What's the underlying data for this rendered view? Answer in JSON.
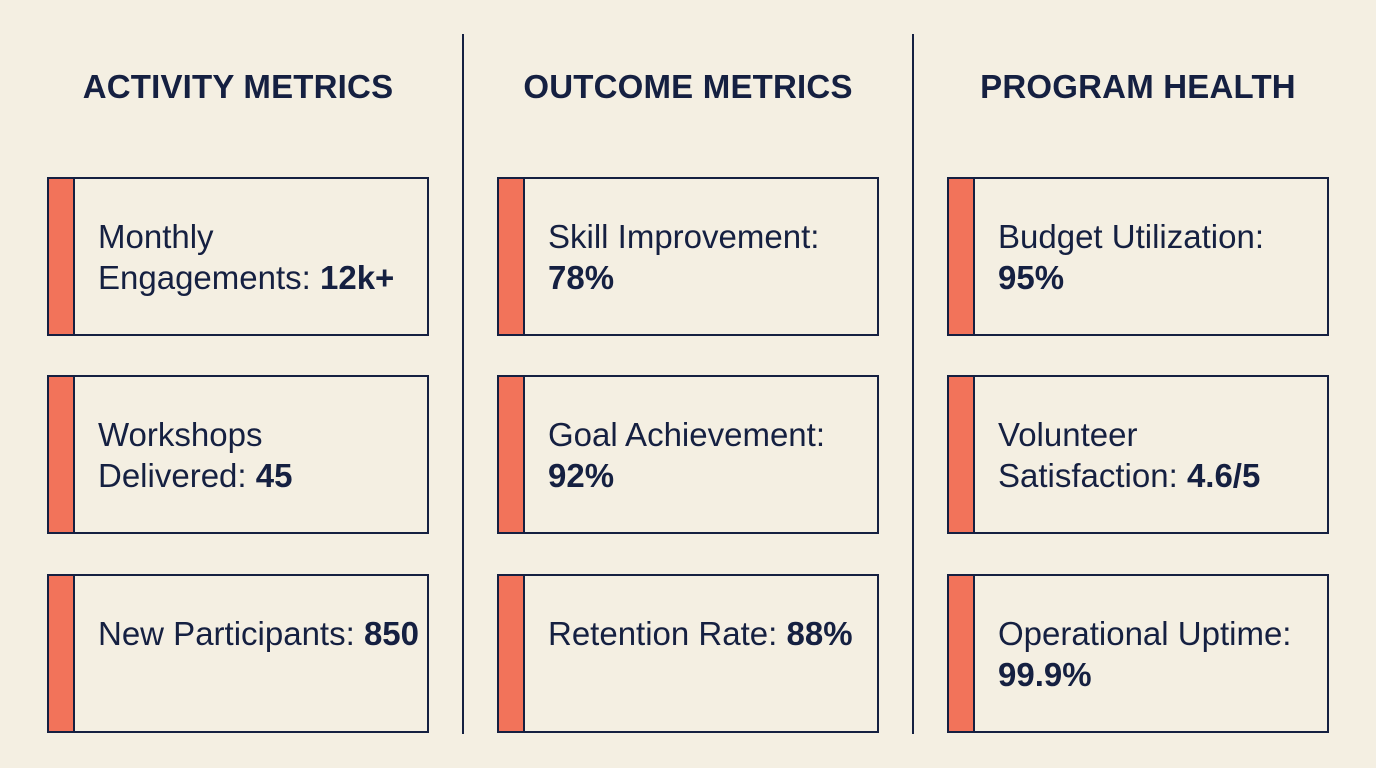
{
  "colors": {
    "background": "#f4efe2",
    "text": "#152041",
    "accent": "#f2735a",
    "border": "#152041"
  },
  "columns": [
    {
      "title": "ACTIVITY METRICS",
      "cards": [
        {
          "label": "Monthly Engagements: ",
          "value": "12k+"
        },
        {
          "label": "Workshops Delivered: ",
          "value": "45"
        },
        {
          "label": "New Participants: ",
          "value": "850"
        }
      ]
    },
    {
      "title": "OUTCOME METRICS",
      "cards": [
        {
          "label": "Skill Improvement: ",
          "value": "78%"
        },
        {
          "label": "Goal Achievement: ",
          "value": "92%"
        },
        {
          "label": "Retention Rate: ",
          "value": "88%"
        }
      ]
    },
    {
      "title": "PROGRAM HEALTH",
      "cards": [
        {
          "label": "Budget Utilization: ",
          "value": "95%"
        },
        {
          "label": "Volunteer Satisfaction: ",
          "value": "4.6/5"
        },
        {
          "label": "Operational Uptime: ",
          "value": "99.9%"
        }
      ]
    }
  ]
}
